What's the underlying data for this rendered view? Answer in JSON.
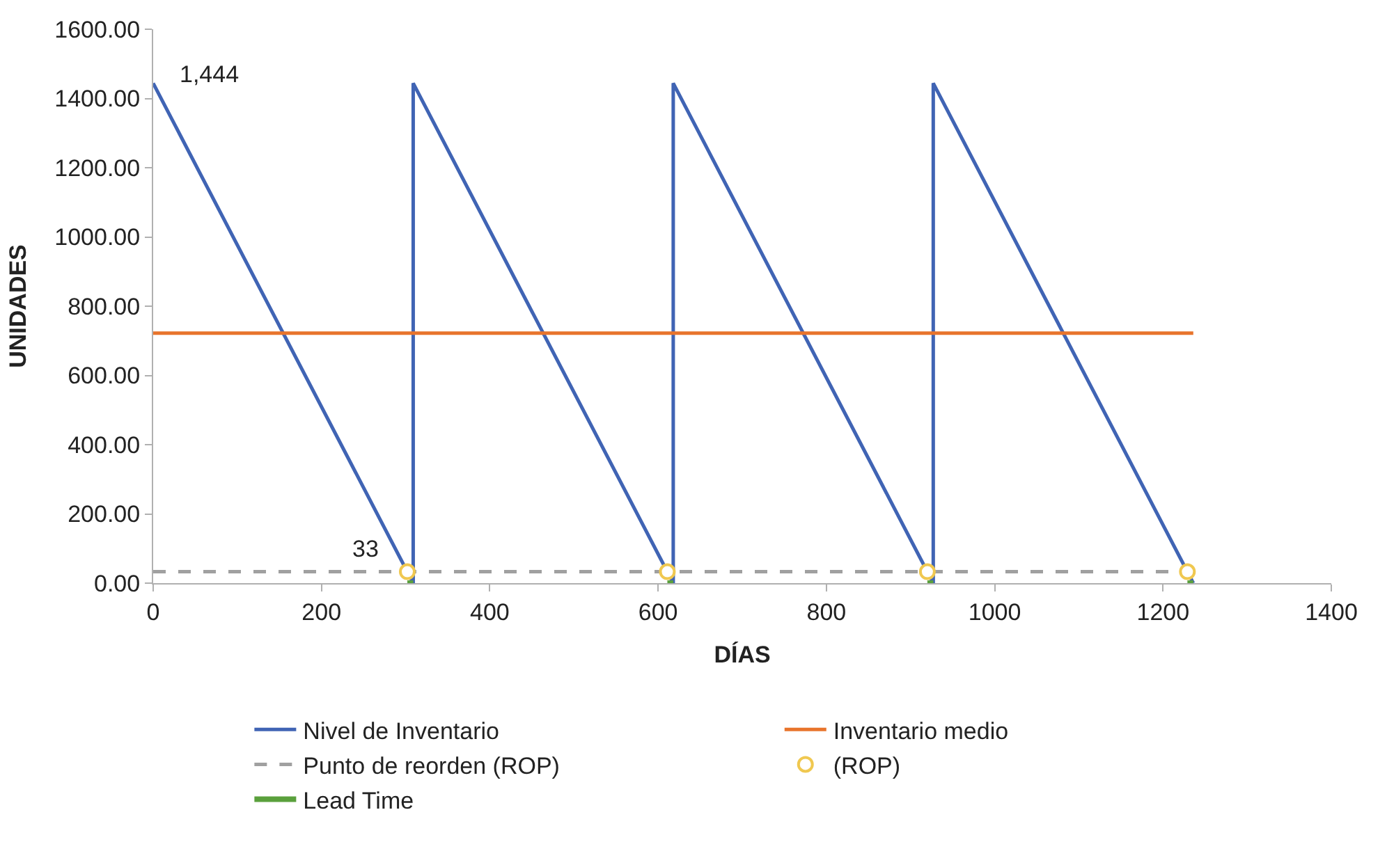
{
  "chart_data": {
    "type": "line",
    "xlabel": "DÍAS",
    "ylabel": "UNIDADES",
    "xlim": [
      0,
      1400
    ],
    "xticks": [
      0,
      200,
      400,
      600,
      800,
      1000,
      1200,
      1400
    ],
    "ylim": [
      0,
      1600
    ],
    "yticks": [
      {
        "value": 0,
        "label": "0.00"
      },
      {
        "value": 200,
        "label": "200.00"
      },
      {
        "value": 400,
        "label": "400.00"
      },
      {
        "value": 600,
        "label": "600.00"
      },
      {
        "value": 800,
        "label": "800.00"
      },
      {
        "value": 1000,
        "label": "1000.00"
      },
      {
        "value": 1200,
        "label": "1200.00"
      },
      {
        "value": 1400,
        "label": "1400.00"
      },
      {
        "value": 1600,
        "label": "1600.00"
      }
    ],
    "legend": "bottom",
    "series": [
      {
        "name": "Nivel de Inventario",
        "color": "#4064b4",
        "line_style": "solid",
        "marker": "none",
        "x": [
          0,
          309,
          309,
          618,
          618,
          927,
          927,
          1236
        ],
        "values": [
          1444,
          0,
          1444,
          0,
          1444,
          0,
          1444,
          0
        ]
      },
      {
        "name": "Inventario medio",
        "color": "#e8742c",
        "line_style": "solid",
        "marker": "none",
        "x": [
          0,
          1236
        ],
        "values": [
          722,
          722
        ]
      },
      {
        "name": "Punto de reorden (ROP)",
        "color": "#a0a0a0",
        "line_style": "dashed",
        "marker": "none",
        "x": [
          0,
          1236
        ],
        "values": [
          33,
          33
        ]
      },
      {
        "name": "(ROP)",
        "type": "scatter",
        "color": "#f0c850",
        "marker": "circle",
        "x": [
          302,
          611,
          920,
          1229
        ],
        "values": [
          33,
          33,
          33,
          33
        ]
      },
      {
        "name": "Lead Time",
        "color": "#5aa03c",
        "line_style": "solid",
        "marker": "none",
        "x": [
          302,
          309,
          null,
          611,
          618,
          null,
          920,
          927,
          null,
          1229,
          1236
        ],
        "values": [
          0,
          0,
          null,
          0,
          0,
          null,
          0,
          0,
          null,
          0,
          0
        ]
      }
    ],
    "annotations": [
      {
        "text": "1,444",
        "x": 0,
        "y": 1444
      },
      {
        "text": "33",
        "x": 302,
        "y": 33
      }
    ]
  }
}
